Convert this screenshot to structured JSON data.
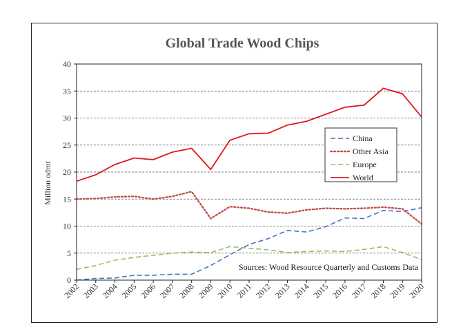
{
  "chart_data": {
    "type": "line",
    "title": "Global Trade Wood Chips",
    "ylabel": "Million odmt",
    "xlabel": "",
    "ylim": [
      0,
      40
    ],
    "yticks": [
      "0",
      "5",
      "10",
      "15",
      "20",
      "25",
      "30",
      "35",
      "40"
    ],
    "x": [
      "2002",
      "2003",
      "2004",
      "2005",
      "2006",
      "2007",
      "2008",
      "2009",
      "2010",
      "2011",
      "2012",
      "2013",
      "2014",
      "2015",
      "2016",
      "2017",
      "2018",
      "2019",
      "2020"
    ],
    "grid": "horizontal dashed",
    "legend_position": "right-center",
    "annotation": "Sources: Wood Resource Quarterly and Customs Data",
    "series": [
      {
        "name": "China",
        "color": "#4472c4",
        "dash": "dashed",
        "values": [
          0.0,
          0.3,
          0.4,
          0.9,
          0.9,
          1.1,
          1.1,
          2.7,
          4.7,
          6.6,
          7.7,
          9.2,
          8.9,
          9.9,
          11.5,
          11.4,
          12.9,
          12.7,
          13.4
        ]
      },
      {
        "name": "Other Asia",
        "color": "#c0504d",
        "dash": "dotted",
        "values": [
          15.0,
          15.1,
          15.4,
          15.5,
          15.0,
          15.5,
          16.4,
          11.4,
          13.6,
          13.3,
          12.6,
          12.4,
          13.0,
          13.3,
          13.2,
          13.3,
          13.5,
          13.2,
          10.4
        ]
      },
      {
        "name": "Europe",
        "color": "#9bbb59",
        "dash": "dashed",
        "values": [
          2.0,
          2.7,
          3.7,
          4.2,
          4.6,
          5.0,
          5.2,
          5.1,
          6.2,
          5.9,
          5.6,
          5.1,
          5.3,
          5.4,
          5.3,
          5.7,
          6.2,
          5.1,
          3.8
        ]
      },
      {
        "name": "World",
        "color": "#e0161c",
        "dash": "solid",
        "values": [
          18.3,
          19.5,
          21.4,
          22.6,
          22.3,
          23.7,
          24.4,
          20.5,
          25.9,
          27.1,
          27.2,
          28.7,
          29.4,
          30.7,
          32.0,
          32.4,
          35.5,
          34.5,
          30.2
        ]
      }
    ]
  }
}
